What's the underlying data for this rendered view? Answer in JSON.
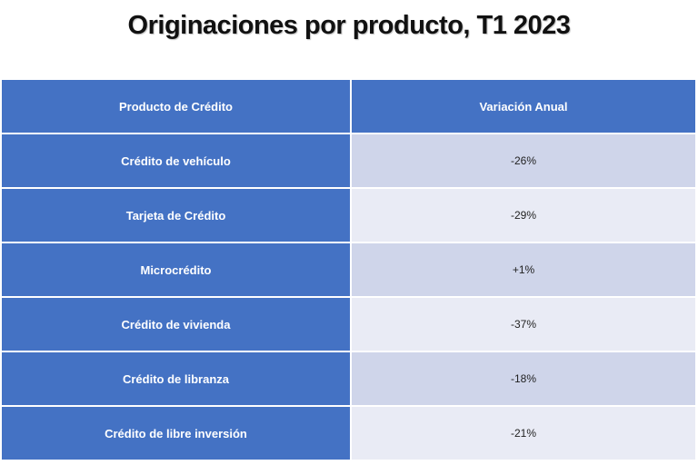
{
  "title": "Originaciones por producto, T1 2023",
  "chart_data": {
    "type": "table",
    "title": "Originaciones por producto, T1 2023",
    "columns": [
      "Producto de Crédito",
      "Variación Anual"
    ],
    "rows": [
      {
        "product": "Crédito de vehículo",
        "change": "-26%",
        "value": -26
      },
      {
        "product": "Tarjeta de Crédito",
        "change": "-29%",
        "value": -29
      },
      {
        "product": "Microcrédito",
        "change": "+1%",
        "value": 1
      },
      {
        "product": "Crédito de vivienda",
        "change": "-37%",
        "value": -37
      },
      {
        "product": "Crédito de libranza",
        "change": "-18%",
        "value": -18
      },
      {
        "product": "Crédito de libre inversión",
        "change": "-21%",
        "value": -21
      }
    ]
  },
  "colors": {
    "header_bg": "#4472c4",
    "row_band_dark": "#cfd5ea",
    "row_band_light": "#e9ebf5"
  }
}
